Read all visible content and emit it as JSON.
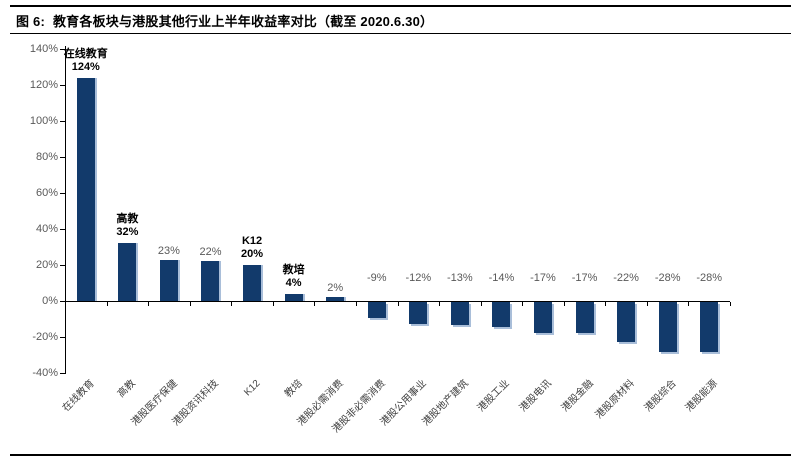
{
  "header": {
    "figure_label": "图 6:",
    "title": "教育各板块与港股其他行业上半年收益率对比（截至 2020.6.30）"
  },
  "chart_data": {
    "type": "bar",
    "title": "教育各板块与港股其他行业上半年收益率对比（截至 2020.6.30）",
    "categories": [
      "在线教育",
      "高教",
      "港股医疗保健",
      "港股资讯科技",
      "K12",
      "教培",
      "港股必需消费",
      "港股非必需消费",
      "港股公用事业",
      "港股地产建筑",
      "港股工业",
      "港股电讯",
      "港股金融",
      "港股原材料",
      "港股综合",
      "港股能源"
    ],
    "values": [
      124,
      32,
      23,
      22,
      20,
      4,
      2,
      -9,
      -12,
      -13,
      -14,
      -17,
      -17,
      -22,
      -28,
      -28
    ],
    "value_labels": [
      "124%",
      "32%",
      "23%",
      "22%",
      "20%",
      "4%",
      "2%",
      "-9%",
      "-12%",
      "-13%",
      "-14%",
      "-17%",
      "-17%",
      "-22%",
      "-28%",
      "-28%"
    ],
    "annotated_categories": [
      {
        "index": 0,
        "label": "在线教育"
      },
      {
        "index": 1,
        "label": "高教"
      },
      {
        "index": 4,
        "label": "K12"
      },
      {
        "index": 5,
        "label": "教培"
      }
    ],
    "xlabel": "",
    "ylabel": "",
    "ylim": [
      -40,
      140
    ],
    "ytick_step": 20,
    "ytick_labels": [
      "140%",
      "120%",
      "100%",
      "80%",
      "60%",
      "40%",
      "20%",
      "0%",
      "-20%",
      "-40%"
    ],
    "grid": false,
    "legend": "none",
    "colors": {
      "bar": "#123A6B",
      "bar_edge_highlight": "#A9BED9",
      "value_label": "#595959",
      "annotation": "#000000",
      "axis": "#000000",
      "tick_label": "#595959",
      "category_label": "#404040"
    }
  }
}
